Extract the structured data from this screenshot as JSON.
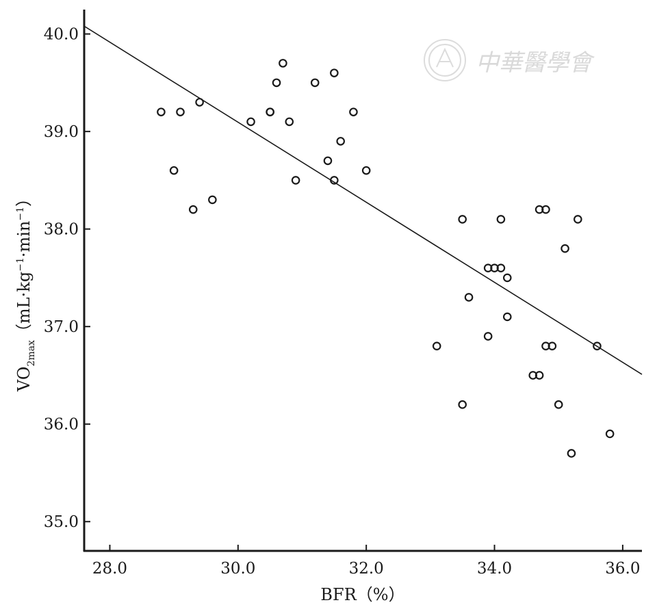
{
  "chart_data": {
    "type": "scatter",
    "xlabel": "BFR（%）",
    "ylabel": {
      "base": "VO",
      "sub": "2max",
      "units_start": "（mL·kg",
      "exp1": "−1",
      "units_mid": "·min",
      "exp2": "−1",
      "units_end": "）"
    },
    "xlim": [
      27.6,
      36.3
    ],
    "ylim": [
      34.7,
      40.25
    ],
    "x_ticks": [
      "28.0",
      "30.0",
      "32.0",
      "34.0",
      "36.0"
    ],
    "y_ticks": [
      "35.0",
      "36.0",
      "37.0",
      "38.0",
      "39.0",
      "40.0"
    ],
    "grid": false,
    "legend": "none",
    "points": [
      [
        28.8,
        39.2
      ],
      [
        29.0,
        38.6
      ],
      [
        29.1,
        39.2
      ],
      [
        29.3,
        38.2
      ],
      [
        29.4,
        39.3
      ],
      [
        29.6,
        38.3
      ],
      [
        30.2,
        39.1
      ],
      [
        30.5,
        39.2
      ],
      [
        30.5,
        39.2
      ],
      [
        30.6,
        39.5
      ],
      [
        30.7,
        39.7
      ],
      [
        30.8,
        39.1
      ],
      [
        30.9,
        38.5
      ],
      [
        31.2,
        39.5
      ],
      [
        31.4,
        38.7
      ],
      [
        31.5,
        38.5
      ],
      [
        31.5,
        39.6
      ],
      [
        31.6,
        38.9
      ],
      [
        31.8,
        39.2
      ],
      [
        32.0,
        38.6
      ],
      [
        33.1,
        36.8
      ],
      [
        33.5,
        36.2
      ],
      [
        33.5,
        38.1
      ],
      [
        33.6,
        37.3
      ],
      [
        33.9,
        37.6
      ],
      [
        33.9,
        36.9
      ],
      [
        34.0,
        37.6
      ],
      [
        34.1,
        37.6
      ],
      [
        34.1,
        38.1
      ],
      [
        34.2,
        37.5
      ],
      [
        34.2,
        37.1
      ],
      [
        34.6,
        36.5
      ],
      [
        34.7,
        36.5
      ],
      [
        34.7,
        38.2
      ],
      [
        34.8,
        38.2
      ],
      [
        34.8,
        36.8
      ],
      [
        34.9,
        36.8
      ],
      [
        35.0,
        36.2
      ],
      [
        35.1,
        37.8
      ],
      [
        35.2,
        35.7
      ],
      [
        35.3,
        38.1
      ],
      [
        35.6,
        36.8
      ],
      [
        35.8,
        35.9
      ]
    ],
    "regression_line": {
      "x": [
        27.6,
        36.3
      ],
      "y": [
        40.08,
        36.51
      ]
    },
    "colors": {
      "marker": "#1a1a1a",
      "line": "#1a1a1a",
      "axis": "#1a1a1a",
      "watermark": "#d9d9d9"
    }
  },
  "watermark": {
    "text": "中華醫學會",
    "icon": "society-seal-icon"
  }
}
